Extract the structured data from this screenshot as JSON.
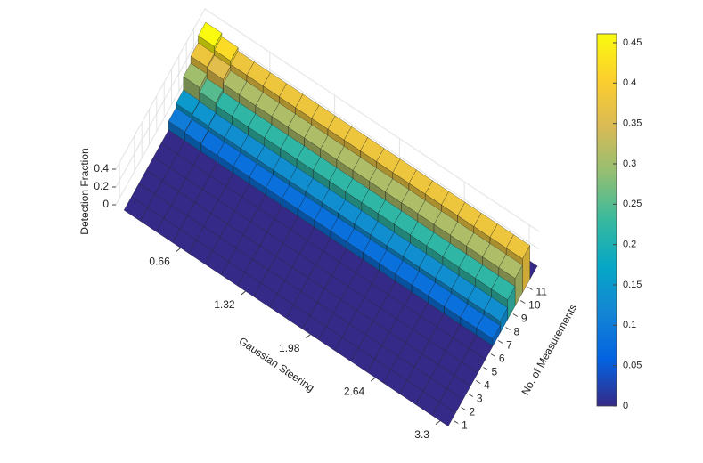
{
  "chart_data": {
    "type": "bar3d",
    "xlabel": "Gaussian Steering",
    "ylabel": "No. of Measurements",
    "zlabel": "Detection Fraction",
    "x": [
      0.165,
      0.33,
      0.495,
      0.66,
      0.825,
      0.99,
      1.155,
      1.32,
      1.485,
      1.65,
      1.815,
      1.98,
      2.145,
      2.31,
      2.475,
      2.64,
      2.805,
      2.97,
      3.135,
      3.3
    ],
    "y": [
      1,
      2,
      3,
      4,
      5,
      6,
      7,
      8,
      9,
      10,
      11,
      12
    ],
    "values": [
      [
        0,
        0,
        0,
        0,
        0,
        0,
        0.1,
        0.15,
        0.3,
        0.38,
        0.46,
        0
      ],
      [
        0,
        0,
        0,
        0,
        0,
        0,
        0.09,
        0.14,
        0.25,
        0.36,
        0.42,
        0
      ],
      [
        0,
        0,
        0,
        0,
        0,
        0,
        0.08,
        0.13,
        0.22,
        0.31,
        0.38,
        0
      ],
      [
        0,
        0,
        0,
        0,
        0,
        0,
        0.08,
        0.13,
        0.22,
        0.31,
        0.38,
        0
      ],
      [
        0,
        0,
        0,
        0,
        0,
        0,
        0.08,
        0.13,
        0.22,
        0.31,
        0.38,
        0
      ],
      [
        0,
        0,
        0,
        0,
        0,
        0,
        0.08,
        0.13,
        0.22,
        0.31,
        0.38,
        0
      ],
      [
        0,
        0,
        0,
        0,
        0,
        0,
        0.08,
        0.13,
        0.22,
        0.31,
        0.38,
        0
      ],
      [
        0,
        0,
        0,
        0,
        0,
        0,
        0.08,
        0.13,
        0.22,
        0.31,
        0.38,
        0
      ],
      [
        0,
        0,
        0,
        0,
        0,
        0,
        0.08,
        0.13,
        0.22,
        0.31,
        0.38,
        0
      ],
      [
        0,
        0,
        0,
        0,
        0,
        0,
        0.08,
        0.13,
        0.22,
        0.31,
        0.38,
        0
      ],
      [
        0,
        0,
        0,
        0,
        0,
        0,
        0.08,
        0.13,
        0.22,
        0.31,
        0.38,
        0
      ],
      [
        0,
        0,
        0,
        0,
        0,
        0,
        0.08,
        0.13,
        0.22,
        0.31,
        0.38,
        0
      ],
      [
        0,
        0,
        0,
        0,
        0,
        0,
        0.08,
        0.13,
        0.22,
        0.31,
        0.38,
        0
      ],
      [
        0,
        0,
        0,
        0,
        0,
        0,
        0.08,
        0.13,
        0.22,
        0.31,
        0.38,
        0
      ],
      [
        0,
        0,
        0,
        0,
        0,
        0,
        0.08,
        0.13,
        0.22,
        0.31,
        0.38,
        0
      ],
      [
        0,
        0,
        0,
        0,
        0,
        0,
        0.08,
        0.13,
        0.22,
        0.31,
        0.38,
        0
      ],
      [
        0,
        0,
        0,
        0,
        0,
        0,
        0.08,
        0.13,
        0.22,
        0.31,
        0.38,
        0
      ],
      [
        0,
        0,
        0,
        0,
        0,
        0,
        0.08,
        0.13,
        0.22,
        0.31,
        0.38,
        0
      ],
      [
        0,
        0,
        0,
        0,
        0,
        0,
        0.08,
        0.13,
        0.22,
        0.31,
        0.38,
        0
      ],
      [
        0,
        0,
        0,
        0,
        0,
        0,
        0.08,
        0.13,
        0.22,
        0.31,
        0.38,
        0
      ]
    ],
    "xlim": [
      0,
      3.4
    ],
    "xticks": [
      0.66,
      1.32,
      1.98,
      2.64,
      3.3
    ],
    "ylim": [
      0.5,
      12.5
    ],
    "yticks": [
      1,
      2,
      3,
      4,
      5,
      6,
      7,
      8,
      9,
      10,
      11
    ],
    "zlim": [
      0,
      0.5
    ],
    "zticks": [
      0,
      0.2,
      0.4
    ],
    "colormap": "parula",
    "clim": [
      0,
      0.461
    ],
    "cticks": [
      0,
      0.05,
      0.1,
      0.15,
      0.2,
      0.25,
      0.3,
      0.35,
      0.4,
      0.45
    ],
    "grid": true
  }
}
